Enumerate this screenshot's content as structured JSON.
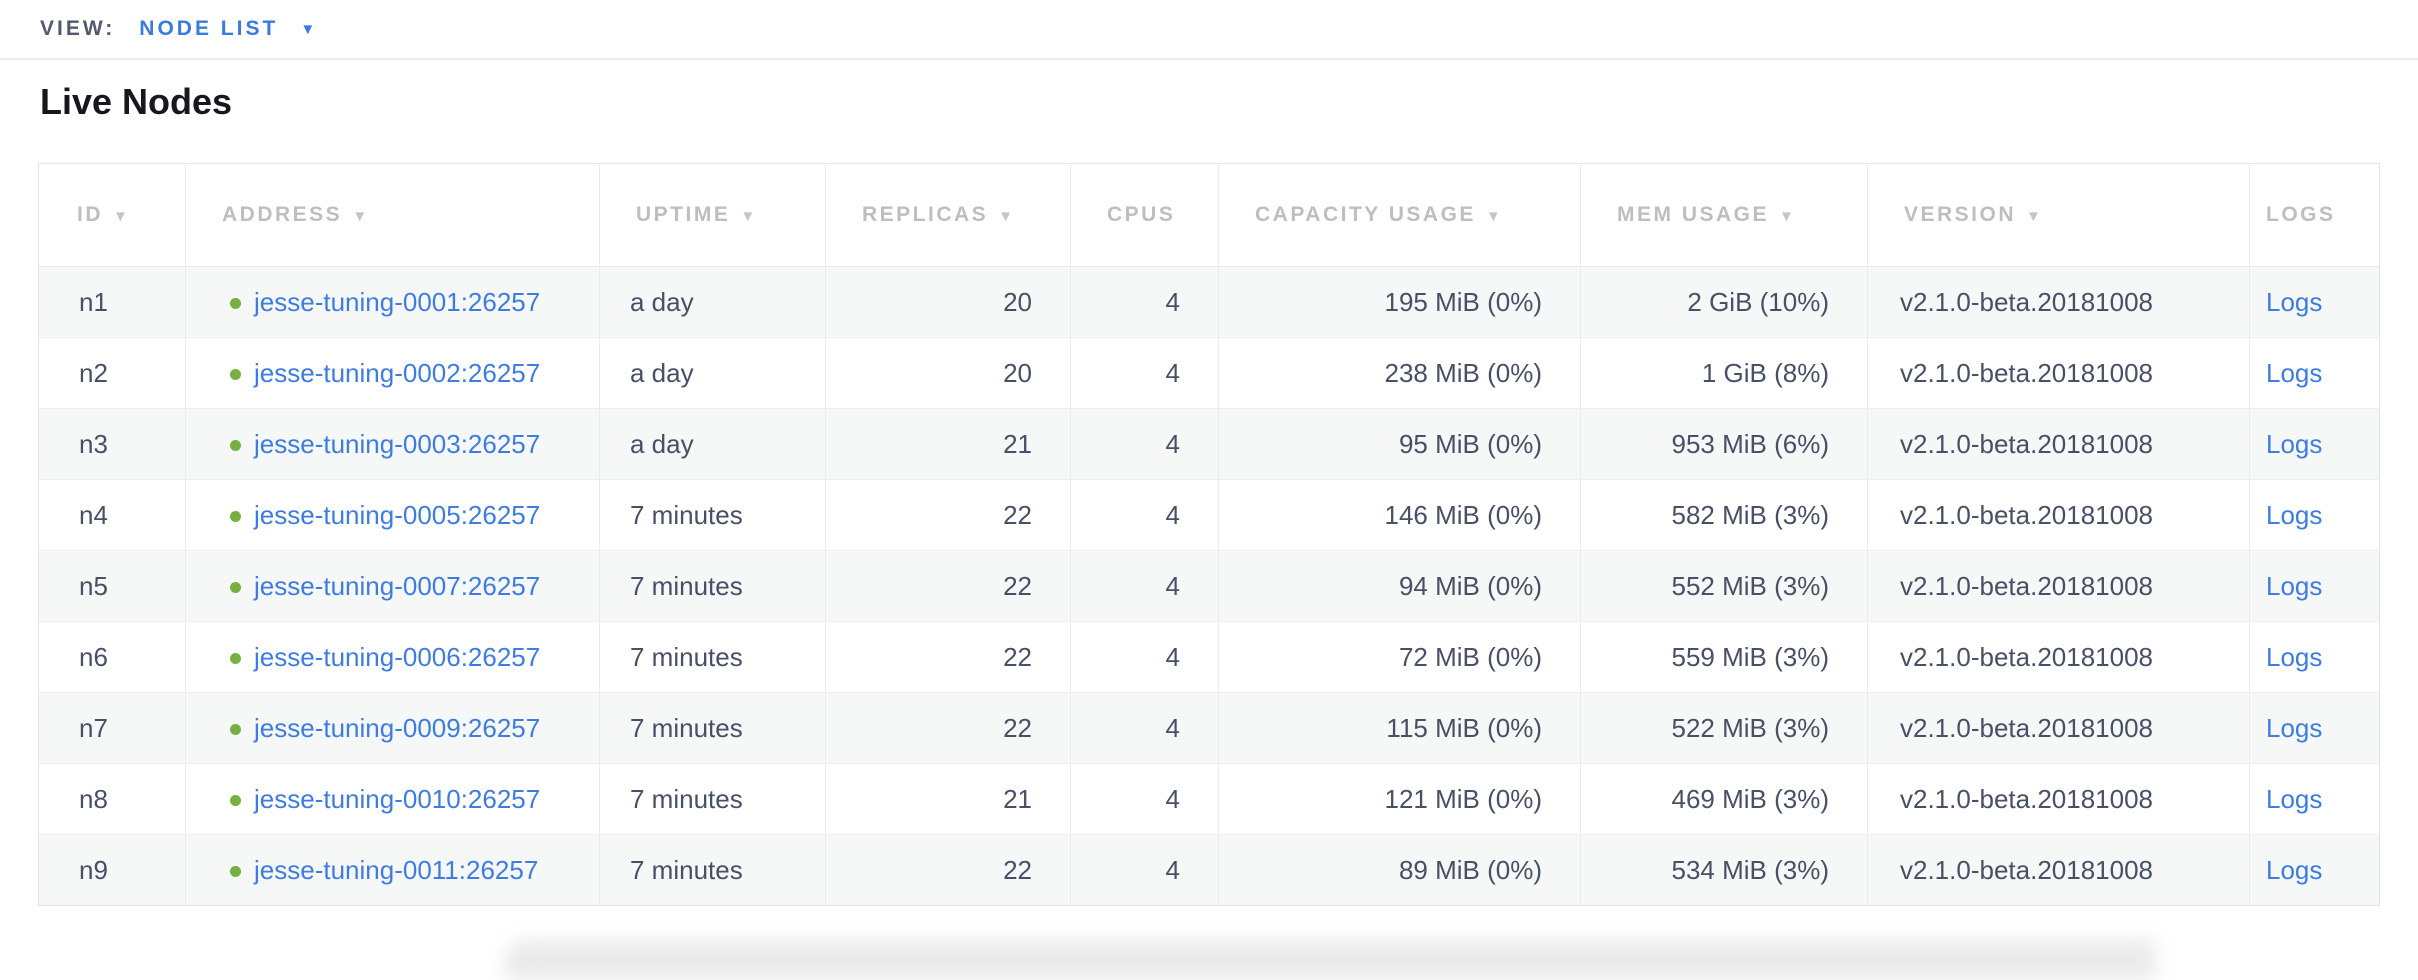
{
  "view_bar": {
    "label": "VIEW:",
    "selected": "NODE LIST"
  },
  "page": {
    "title": "Live Nodes"
  },
  "icons": {
    "sort_desc": "▼",
    "chevron_down": "▼"
  },
  "colors": {
    "accent_blue": "#3a7be0",
    "link_blue": "#3e7ce0",
    "status_green": "#76b041",
    "header_gray": "#bcbec2",
    "body_text": "#475064",
    "row_stripe": "#f6f7f7",
    "border": "#ececec"
  },
  "table": {
    "columns": [
      {
        "key": "id",
        "label": "ID",
        "sortable": true
      },
      {
        "key": "address",
        "label": "ADDRESS",
        "sortable": true
      },
      {
        "key": "uptime",
        "label": "UPTIME",
        "sortable": true
      },
      {
        "key": "replicas",
        "label": "REPLICAS",
        "sortable": true
      },
      {
        "key": "cpus",
        "label": "CPUS",
        "sortable": false
      },
      {
        "key": "capacity",
        "label": "CAPACITY USAGE",
        "sortable": true
      },
      {
        "key": "mem",
        "label": "MEM USAGE",
        "sortable": true
      },
      {
        "key": "version",
        "label": "VERSION",
        "sortable": true
      },
      {
        "key": "logs",
        "label": "LOGS",
        "sortable": false
      }
    ],
    "rows": [
      {
        "id": "n1",
        "address": "jesse-tuning-0001:26257",
        "uptime": "a day",
        "replicas": "20",
        "cpus": "4",
        "capacity": "195 MiB (0%)",
        "mem": "2 GiB (10%)",
        "version": "v2.1.0-beta.20181008",
        "logs": "Logs"
      },
      {
        "id": "n2",
        "address": "jesse-tuning-0002:26257",
        "uptime": "a day",
        "replicas": "20",
        "cpus": "4",
        "capacity": "238 MiB (0%)",
        "mem": "1 GiB (8%)",
        "version": "v2.1.0-beta.20181008",
        "logs": "Logs"
      },
      {
        "id": "n3",
        "address": "jesse-tuning-0003:26257",
        "uptime": "a day",
        "replicas": "21",
        "cpus": "4",
        "capacity": "95 MiB (0%)",
        "mem": "953 MiB (6%)",
        "version": "v2.1.0-beta.20181008",
        "logs": "Logs"
      },
      {
        "id": "n4",
        "address": "jesse-tuning-0005:26257",
        "uptime": "7 minutes",
        "replicas": "22",
        "cpus": "4",
        "capacity": "146 MiB (0%)",
        "mem": "582 MiB (3%)",
        "version": "v2.1.0-beta.20181008",
        "logs": "Logs"
      },
      {
        "id": "n5",
        "address": "jesse-tuning-0007:26257",
        "uptime": "7 minutes",
        "replicas": "22",
        "cpus": "4",
        "capacity": "94 MiB (0%)",
        "mem": "552 MiB (3%)",
        "version": "v2.1.0-beta.20181008",
        "logs": "Logs"
      },
      {
        "id": "n6",
        "address": "jesse-tuning-0006:26257",
        "uptime": "7 minutes",
        "replicas": "22",
        "cpus": "4",
        "capacity": "72 MiB (0%)",
        "mem": "559 MiB (3%)",
        "version": "v2.1.0-beta.20181008",
        "logs": "Logs"
      },
      {
        "id": "n7",
        "address": "jesse-tuning-0009:26257",
        "uptime": "7 minutes",
        "replicas": "22",
        "cpus": "4",
        "capacity": "115 MiB (0%)",
        "mem": "522 MiB (3%)",
        "version": "v2.1.0-beta.20181008",
        "logs": "Logs"
      },
      {
        "id": "n8",
        "address": "jesse-tuning-0010:26257",
        "uptime": "7 minutes",
        "replicas": "21",
        "cpus": "4",
        "capacity": "121 MiB (0%)",
        "mem": "469 MiB (3%)",
        "version": "v2.1.0-beta.20181008",
        "logs": "Logs"
      },
      {
        "id": "n9",
        "address": "jesse-tuning-0011:26257",
        "uptime": "7 minutes",
        "replicas": "22",
        "cpus": "4",
        "capacity": "89 MiB (0%)",
        "mem": "534 MiB (3%)",
        "version": "v2.1.0-beta.20181008",
        "logs": "Logs"
      }
    ]
  }
}
